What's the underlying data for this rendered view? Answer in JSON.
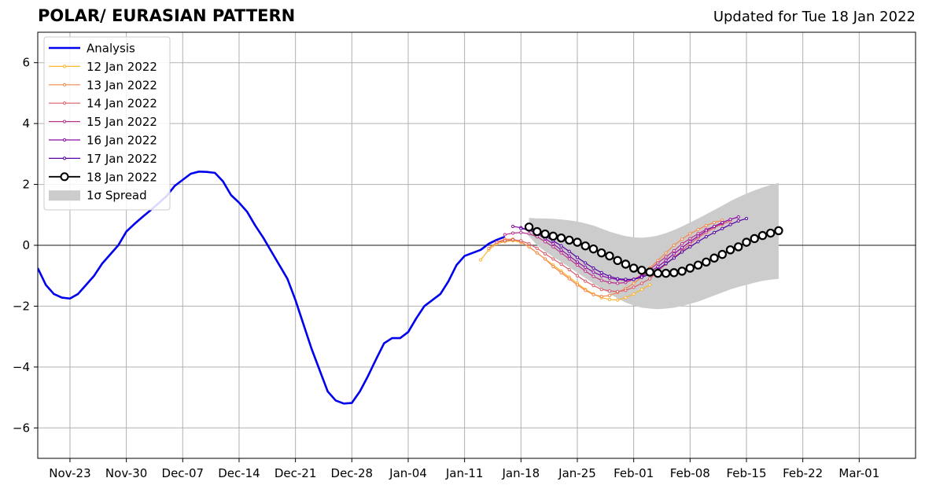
{
  "title": "POLAR/ EURASIAN  PATTERN",
  "updated": "Updated for Tue 18 Jan 2022",
  "colors": {
    "analysis": "#0000ee",
    "spread": "#cccccc",
    "forecasts": [
      "#fdb42f",
      "#f48849",
      "#db5c68",
      "#b83289",
      "#8b0aa5",
      "#5402a3",
      "#000000"
    ]
  },
  "chart_data": {
    "type": "line",
    "title": "POLAR/ EURASIAN  PATTERN",
    "xlabel": "",
    "ylabel": "",
    "xlim": [
      "2021-11-19",
      "2022-03-08"
    ],
    "ylim": [
      -7,
      7
    ],
    "grid": true,
    "legend_position": "top-left",
    "x_ticks": [
      "2021-11-23",
      "2021-11-30",
      "2021-12-07",
      "2021-12-14",
      "2021-12-21",
      "2021-12-28",
      "2022-01-04",
      "2022-01-11",
      "2022-01-18",
      "2022-01-25",
      "2022-02-01",
      "2022-02-08",
      "2022-02-15",
      "2022-02-22",
      "2022-03-01"
    ],
    "x_tick_labels": [
      "Nov-23",
      "Nov-30",
      "Dec-07",
      "Dec-14",
      "Dec-21",
      "Dec-28",
      "Jan-04",
      "Jan-11",
      "Jan-18",
      "Jan-25",
      "Feb-01",
      "Feb-08",
      "Feb-15",
      "Feb-22",
      "Mar-01"
    ],
    "y_ticks": [
      -6,
      -4,
      -2,
      0,
      2,
      4,
      6
    ],
    "y_tick_labels": [
      "−6",
      "−4",
      "−2",
      "0",
      "2",
      "4",
      "6"
    ],
    "analysis": {
      "name": "Analysis",
      "start": "2021-11-19",
      "values": [
        -0.75,
        -1.3,
        -1.6,
        -1.72,
        -1.75,
        -1.6,
        -1.3,
        -1.0,
        -0.6,
        -0.3,
        0.0,
        0.45,
        0.7,
        0.93,
        1.15,
        1.38,
        1.62,
        1.95,
        2.15,
        2.35,
        2.42,
        2.41,
        2.38,
        2.1,
        1.65,
        1.4,
        1.1,
        0.65,
        0.25,
        -0.2,
        -0.65,
        -1.1,
        -1.8,
        -2.6,
        -3.4,
        -4.1,
        -4.8,
        -5.1,
        -5.2,
        -5.18,
        -4.8,
        -4.3,
        -3.75,
        -3.22,
        -3.05,
        -3.05,
        -2.85,
        -2.4,
        -2.0,
        -1.8,
        -1.6,
        -1.18,
        -0.65,
        -0.35,
        -0.25,
        -0.15,
        0.05,
        0.18,
        0.28
      ]
    },
    "forecasts": [
      {
        "name": "12 Jan 2022",
        "start": "2022-01-13",
        "values": [
          -0.48,
          -0.15,
          0.05,
          0.12,
          0.15,
          0.1,
          -0.05,
          -0.25,
          -0.45,
          -0.65,
          -0.85,
          -1.05,
          -1.25,
          -1.45,
          -1.6,
          -1.72,
          -1.78,
          -1.8,
          -1.72,
          -1.6,
          -1.45,
          -1.3
        ]
      },
      {
        "name": "13 Jan 2022",
        "start": "2022-01-14",
        "values": [
          -0.1,
          0.1,
          0.2,
          0.2,
          0.12,
          -0.05,
          -0.25,
          -0.45,
          -0.7,
          -0.9,
          -1.1,
          -1.3,
          -1.48,
          -1.62,
          -1.68,
          -1.65,
          -1.55,
          -1.42,
          -1.25,
          -1.05,
          -0.75,
          -0.5,
          -0.25,
          0.0,
          0.2,
          0.38,
          0.52,
          0.65,
          0.75,
          0.82
        ]
      },
      {
        "name": "14 Jan 2022",
        "start": "2022-01-15",
        "values": [
          0.1,
          0.15,
          0.18,
          0.15,
          0.05,
          -0.1,
          -0.28,
          -0.45,
          -0.62,
          -0.8,
          -1.0,
          -1.18,
          -1.32,
          -1.45,
          -1.5,
          -1.52,
          -1.48,
          -1.38,
          -1.25,
          -1.1,
          -0.85,
          -0.62,
          -0.4,
          -0.18,
          0.05,
          0.25,
          0.42,
          0.58,
          0.7,
          0.8
        ]
      },
      {
        "name": "15 Jan 2022",
        "start": "2022-01-16",
        "values": [
          0.35,
          0.4,
          0.42,
          0.38,
          0.28,
          0.12,
          -0.05,
          -0.25,
          -0.45,
          -0.65,
          -0.85,
          -1.02,
          -1.15,
          -1.22,
          -1.25,
          -1.22,
          -1.12,
          -0.98,
          -0.8,
          -0.58,
          -0.38,
          -0.18,
          0.05,
          0.22,
          0.38,
          0.52,
          0.62,
          0.72
        ]
      },
      {
        "name": "16 Jan 2022",
        "start": "2022-01-17",
        "values": [
          0.62,
          0.58,
          0.5,
          0.38,
          0.22,
          0.05,
          -0.15,
          -0.35,
          -0.55,
          -0.72,
          -0.88,
          -1.0,
          -1.08,
          -1.12,
          -1.15,
          -1.12,
          -1.02,
          -0.88,
          -0.7,
          -0.5,
          -0.28,
          -0.08,
          0.12,
          0.3,
          0.48,
          0.62,
          0.75,
          0.85,
          0.93
        ]
      },
      {
        "name": "17 Jan 2022",
        "start": "2022-01-18",
        "values": [
          0.55,
          0.5,
          0.42,
          0.3,
          0.15,
          -0.02,
          -0.2,
          -0.4,
          -0.58,
          -0.75,
          -0.9,
          -1.02,
          -1.1,
          -1.12,
          -1.12,
          -1.05,
          -0.95,
          -0.8,
          -0.6,
          -0.42,
          -0.22,
          -0.05,
          0.12,
          0.28,
          0.42,
          0.55,
          0.68,
          0.8,
          0.88
        ]
      },
      {
        "name": "18 Jan 2022",
        "start": "2022-01-19",
        "values": [
          0.6,
          0.45,
          0.37,
          0.3,
          0.24,
          0.17,
          0.1,
          -0.02,
          -0.12,
          -0.25,
          -0.35,
          -0.5,
          -0.62,
          -0.75,
          -0.82,
          -0.88,
          -0.92,
          -0.92,
          -0.9,
          -0.85,
          -0.75,
          -0.65,
          -0.55,
          -0.42,
          -0.3,
          -0.15,
          -0.05,
          0.1,
          0.22,
          0.32,
          0.4,
          0.48
        ]
      }
    ],
    "spread": {
      "name": "1σ Spread",
      "start": "2022-01-19",
      "upper": [
        0.9,
        0.88,
        0.88,
        0.87,
        0.85,
        0.82,
        0.78,
        0.72,
        0.65,
        0.55,
        0.45,
        0.37,
        0.3,
        0.26,
        0.25,
        0.27,
        0.32,
        0.4,
        0.5,
        0.62,
        0.75,
        0.88,
        1.02,
        1.16,
        1.3,
        1.45,
        1.58,
        1.7,
        1.8,
        1.9,
        1.98,
        2.05
      ],
      "lower": [
        0.3,
        0.0,
        -0.2,
        -0.38,
        -0.55,
        -0.72,
        -0.9,
        -1.08,
        -1.25,
        -1.42,
        -1.58,
        -1.75,
        -1.88,
        -1.98,
        -2.05,
        -2.08,
        -2.1,
        -2.08,
        -2.05,
        -2.0,
        -1.92,
        -1.85,
        -1.75,
        -1.65,
        -1.55,
        -1.45,
        -1.37,
        -1.3,
        -1.23,
        -1.17,
        -1.13,
        -1.1
      ]
    }
  }
}
